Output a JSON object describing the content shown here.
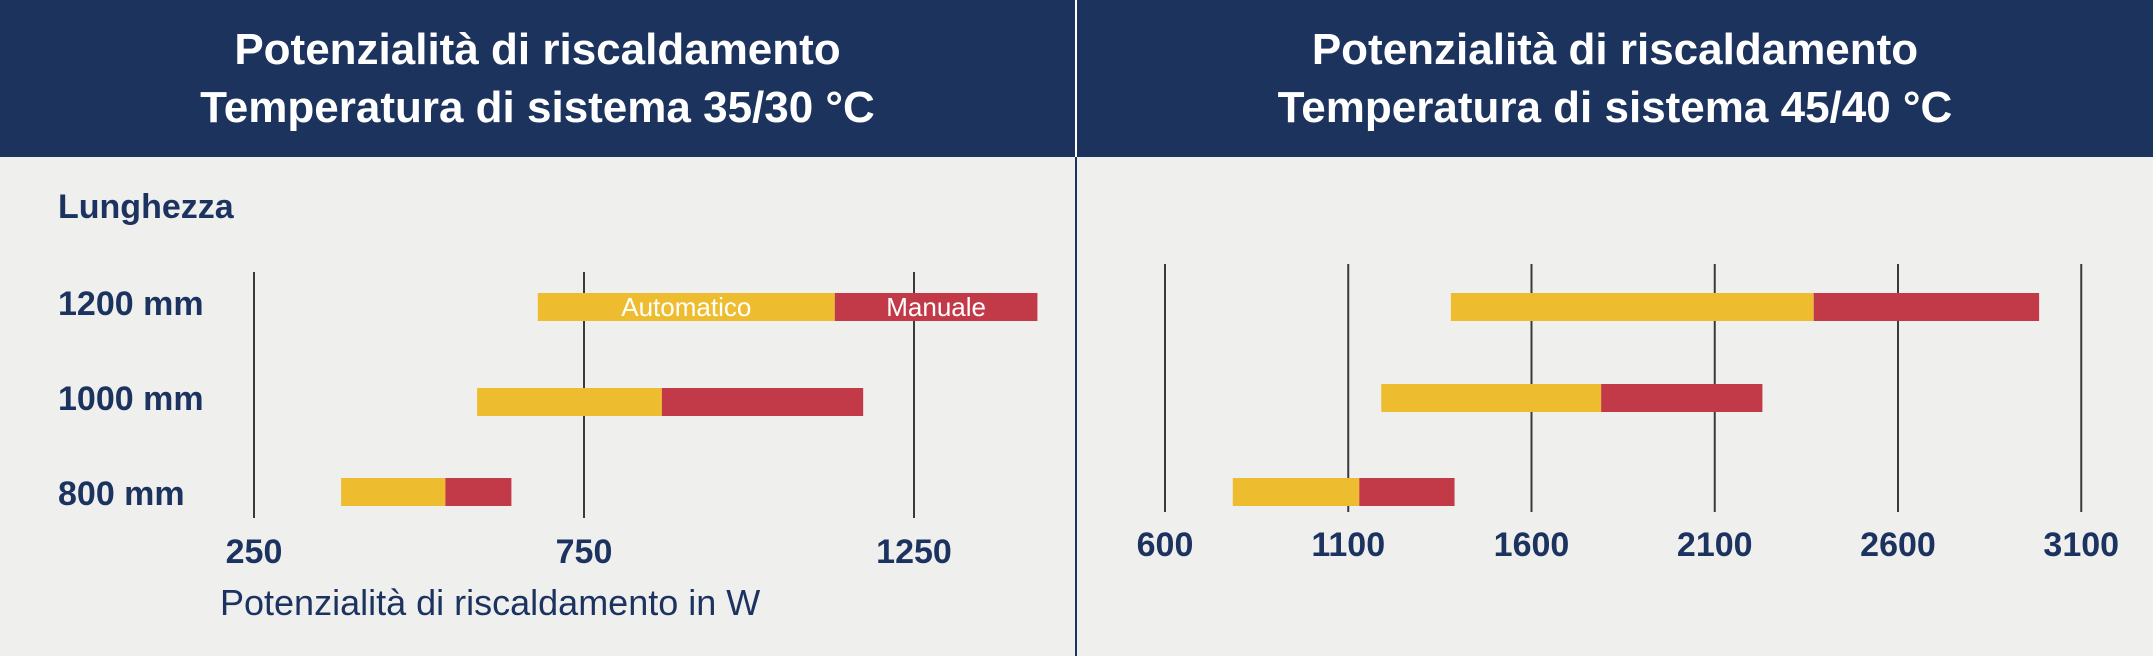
{
  "colors": {
    "header_bg": "#1c335e",
    "background": "#efefee",
    "automatic": "#eebd2f",
    "manual": "#c23a48",
    "text": "#1c3360",
    "gridline": "#3a3a3a"
  },
  "left_panel": {
    "title_line1": "Potenzialità di riscaldamento",
    "title_line2": "Temperatura di sistema 35/30 °C"
  },
  "right_panel": {
    "title_line1": "Potenzialità di riscaldamento",
    "title_line2": "Temperatura di sistema 45/40 °C"
  },
  "row_heading": "Lunghezza",
  "chart_data": [
    {
      "type": "bar",
      "orientation": "horizontal",
      "stacked": true,
      "title": "Potenzialità di riscaldamento Temperatura di sistema 35/30 °C",
      "ylabel": "Lunghezza",
      "xlabel": "Potenzialità di riscaldamento in W",
      "categories": [
        "1200 mm",
        "1000 mm",
        "800 mm"
      ],
      "xticks": [
        250,
        750,
        1250
      ],
      "xlim": [
        250,
        1450
      ],
      "grid": true,
      "series": [
        {
          "name": "Automatico",
          "color": "#eebd2f",
          "ranges": [
            [
              680,
              1130
            ],
            [
              588,
              868
            ],
            [
              382,
              540
            ]
          ]
        },
        {
          "name": "Manuale",
          "color": "#c23a48",
          "ranges": [
            [
              1130,
              1437
            ],
            [
              868,
              1173
            ],
            [
              540,
              640
            ]
          ]
        }
      ]
    },
    {
      "type": "bar",
      "orientation": "horizontal",
      "stacked": true,
      "title": "Potenzialità di riscaldamento Temperatura di sistema 45/40 °C",
      "ylabel": "",
      "xlabel": "",
      "categories": [
        "1200 mm",
        "1000 mm",
        "800 mm"
      ],
      "xticks": [
        600,
        1100,
        1600,
        2100,
        2600,
        3100
      ],
      "xlim": [
        600,
        3100
      ],
      "grid": true,
      "series": [
        {
          "color": "#eebd2f",
          "ranges": [
            [
              1380,
              2370
            ],
            [
              1190,
              1790
            ],
            [
              785,
              1130
            ]
          ]
        },
        {
          "color": "#c23a48",
          "ranges": [
            [
              2370,
              2985
            ],
            [
              1790,
              2230
            ],
            [
              1130,
              1390
            ]
          ]
        }
      ]
    }
  ]
}
